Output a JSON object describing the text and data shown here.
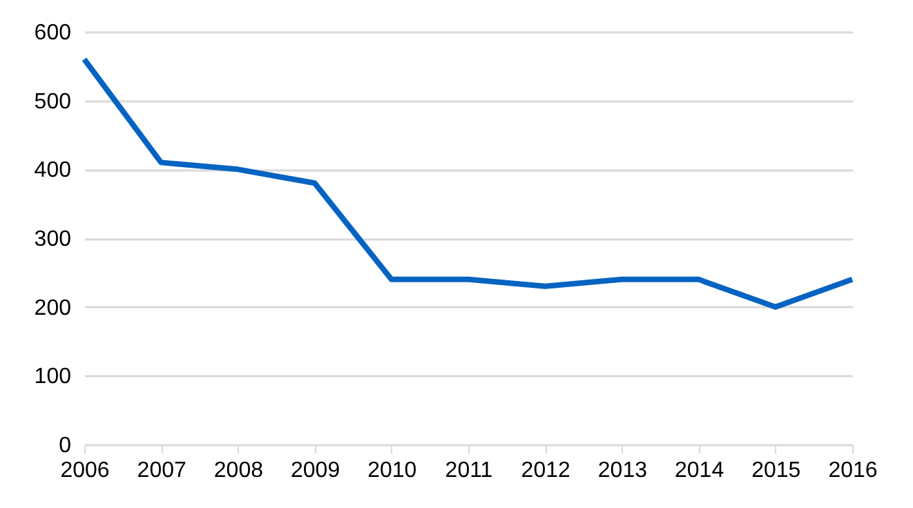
{
  "chart_data": {
    "type": "line",
    "x": [
      2006,
      2007,
      2008,
      2009,
      2010,
      2011,
      2012,
      2013,
      2014,
      2015,
      2016
    ],
    "series": [
      {
        "color": "#0563c1",
        "values": [
          560,
          410,
          400,
          380,
          240,
          240,
          230,
          240,
          240,
          200,
          240
        ]
      }
    ],
    "xlim": [
      2006,
      2016
    ],
    "xticks": [
      2006,
      2007,
      2008,
      2009,
      2010,
      2011,
      2012,
      2013,
      2014,
      2015,
      2016
    ],
    "ylim": [
      0,
      600
    ],
    "yticks": [
      0,
      100,
      200,
      300,
      400,
      500,
      600
    ],
    "grid": "y",
    "marker": "none",
    "line_style": "solid"
  }
}
